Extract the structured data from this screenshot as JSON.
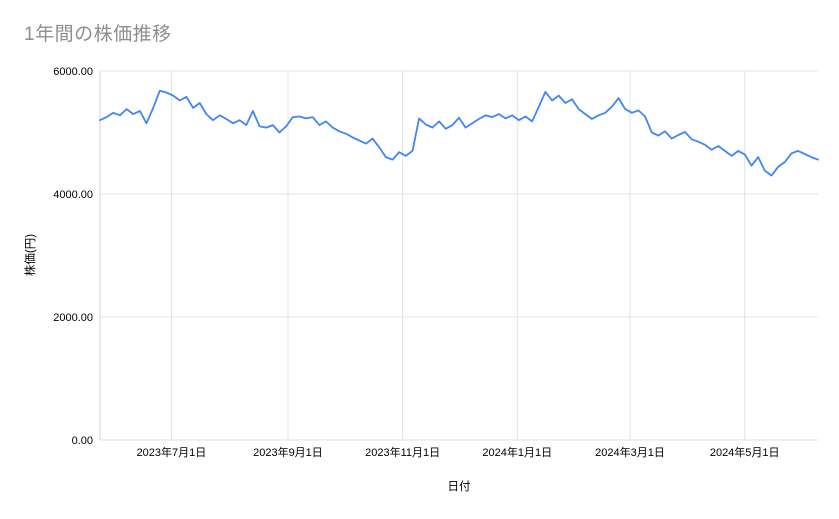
{
  "page": {
    "title": "1年間の株価推移"
  },
  "colors": {
    "background": "#ffffff",
    "line": "#4285f4",
    "grid": "#e3e3e3",
    "axis_line": "#d6d6d6",
    "title_text": "#8e8e8e",
    "axis_text": "#000000"
  },
  "chart_data": {
    "type": "line",
    "title": "1年間の株価推移",
    "xlabel": "日付",
    "ylabel": "株価(円)",
    "ylim": [
      0,
      6000
    ],
    "x_start": "2023-05-24",
    "x_end": "2024-06-09",
    "grid": true,
    "legend": "none",
    "y_ticks": [
      {
        "value": 0,
        "label": "0.00"
      },
      {
        "value": 2000,
        "label": "2000.00"
      },
      {
        "value": 4000,
        "label": "4000.00"
      },
      {
        "value": 6000,
        "label": "6000.00"
      }
    ],
    "x_ticks": [
      {
        "date": "2023-07-01",
        "label": "2023年7月1日"
      },
      {
        "date": "2023-09-01",
        "label": "2023年9月1日"
      },
      {
        "date": "2023-11-01",
        "label": "2023年11月1日"
      },
      {
        "date": "2024-01-01",
        "label": "2024年1月1日"
      },
      {
        "date": "2024-03-01",
        "label": "2024年3月1日"
      },
      {
        "date": "2024-05-01",
        "label": "2024年5月1日"
      }
    ],
    "series": [
      {
        "name": "株価",
        "color": "#4285f4",
        "values": [
          5200,
          5250,
          5320,
          5280,
          5380,
          5300,
          5350,
          5150,
          5400,
          5680,
          5650,
          5600,
          5520,
          5580,
          5400,
          5480,
          5300,
          5200,
          5280,
          5220,
          5150,
          5200,
          5120,
          5350,
          5100,
          5080,
          5120,
          5000,
          5100,
          5250,
          5260,
          5230,
          5250,
          5120,
          5180,
          5080,
          5020,
          4980,
          4920,
          4870,
          4820,
          4900,
          4760,
          4600,
          4560,
          4680,
          4620,
          4700,
          5230,
          5130,
          5080,
          5180,
          5060,
          5120,
          5240,
          5080,
          5150,
          5220,
          5280,
          5250,
          5300,
          5230,
          5280,
          5200,
          5260,
          5180,
          5420,
          5660,
          5520,
          5600,
          5480,
          5540,
          5380,
          5300,
          5220,
          5280,
          5320,
          5420,
          5560,
          5380,
          5320,
          5360,
          5260,
          5000,
          4950,
          5020,
          4900,
          4960,
          5010,
          4890,
          4850,
          4800,
          4720,
          4780,
          4700,
          4620,
          4700,
          4640,
          4460,
          4600,
          4380,
          4300,
          4440,
          4520,
          4660,
          4700,
          4650,
          4600,
          4560
        ]
      }
    ]
  }
}
